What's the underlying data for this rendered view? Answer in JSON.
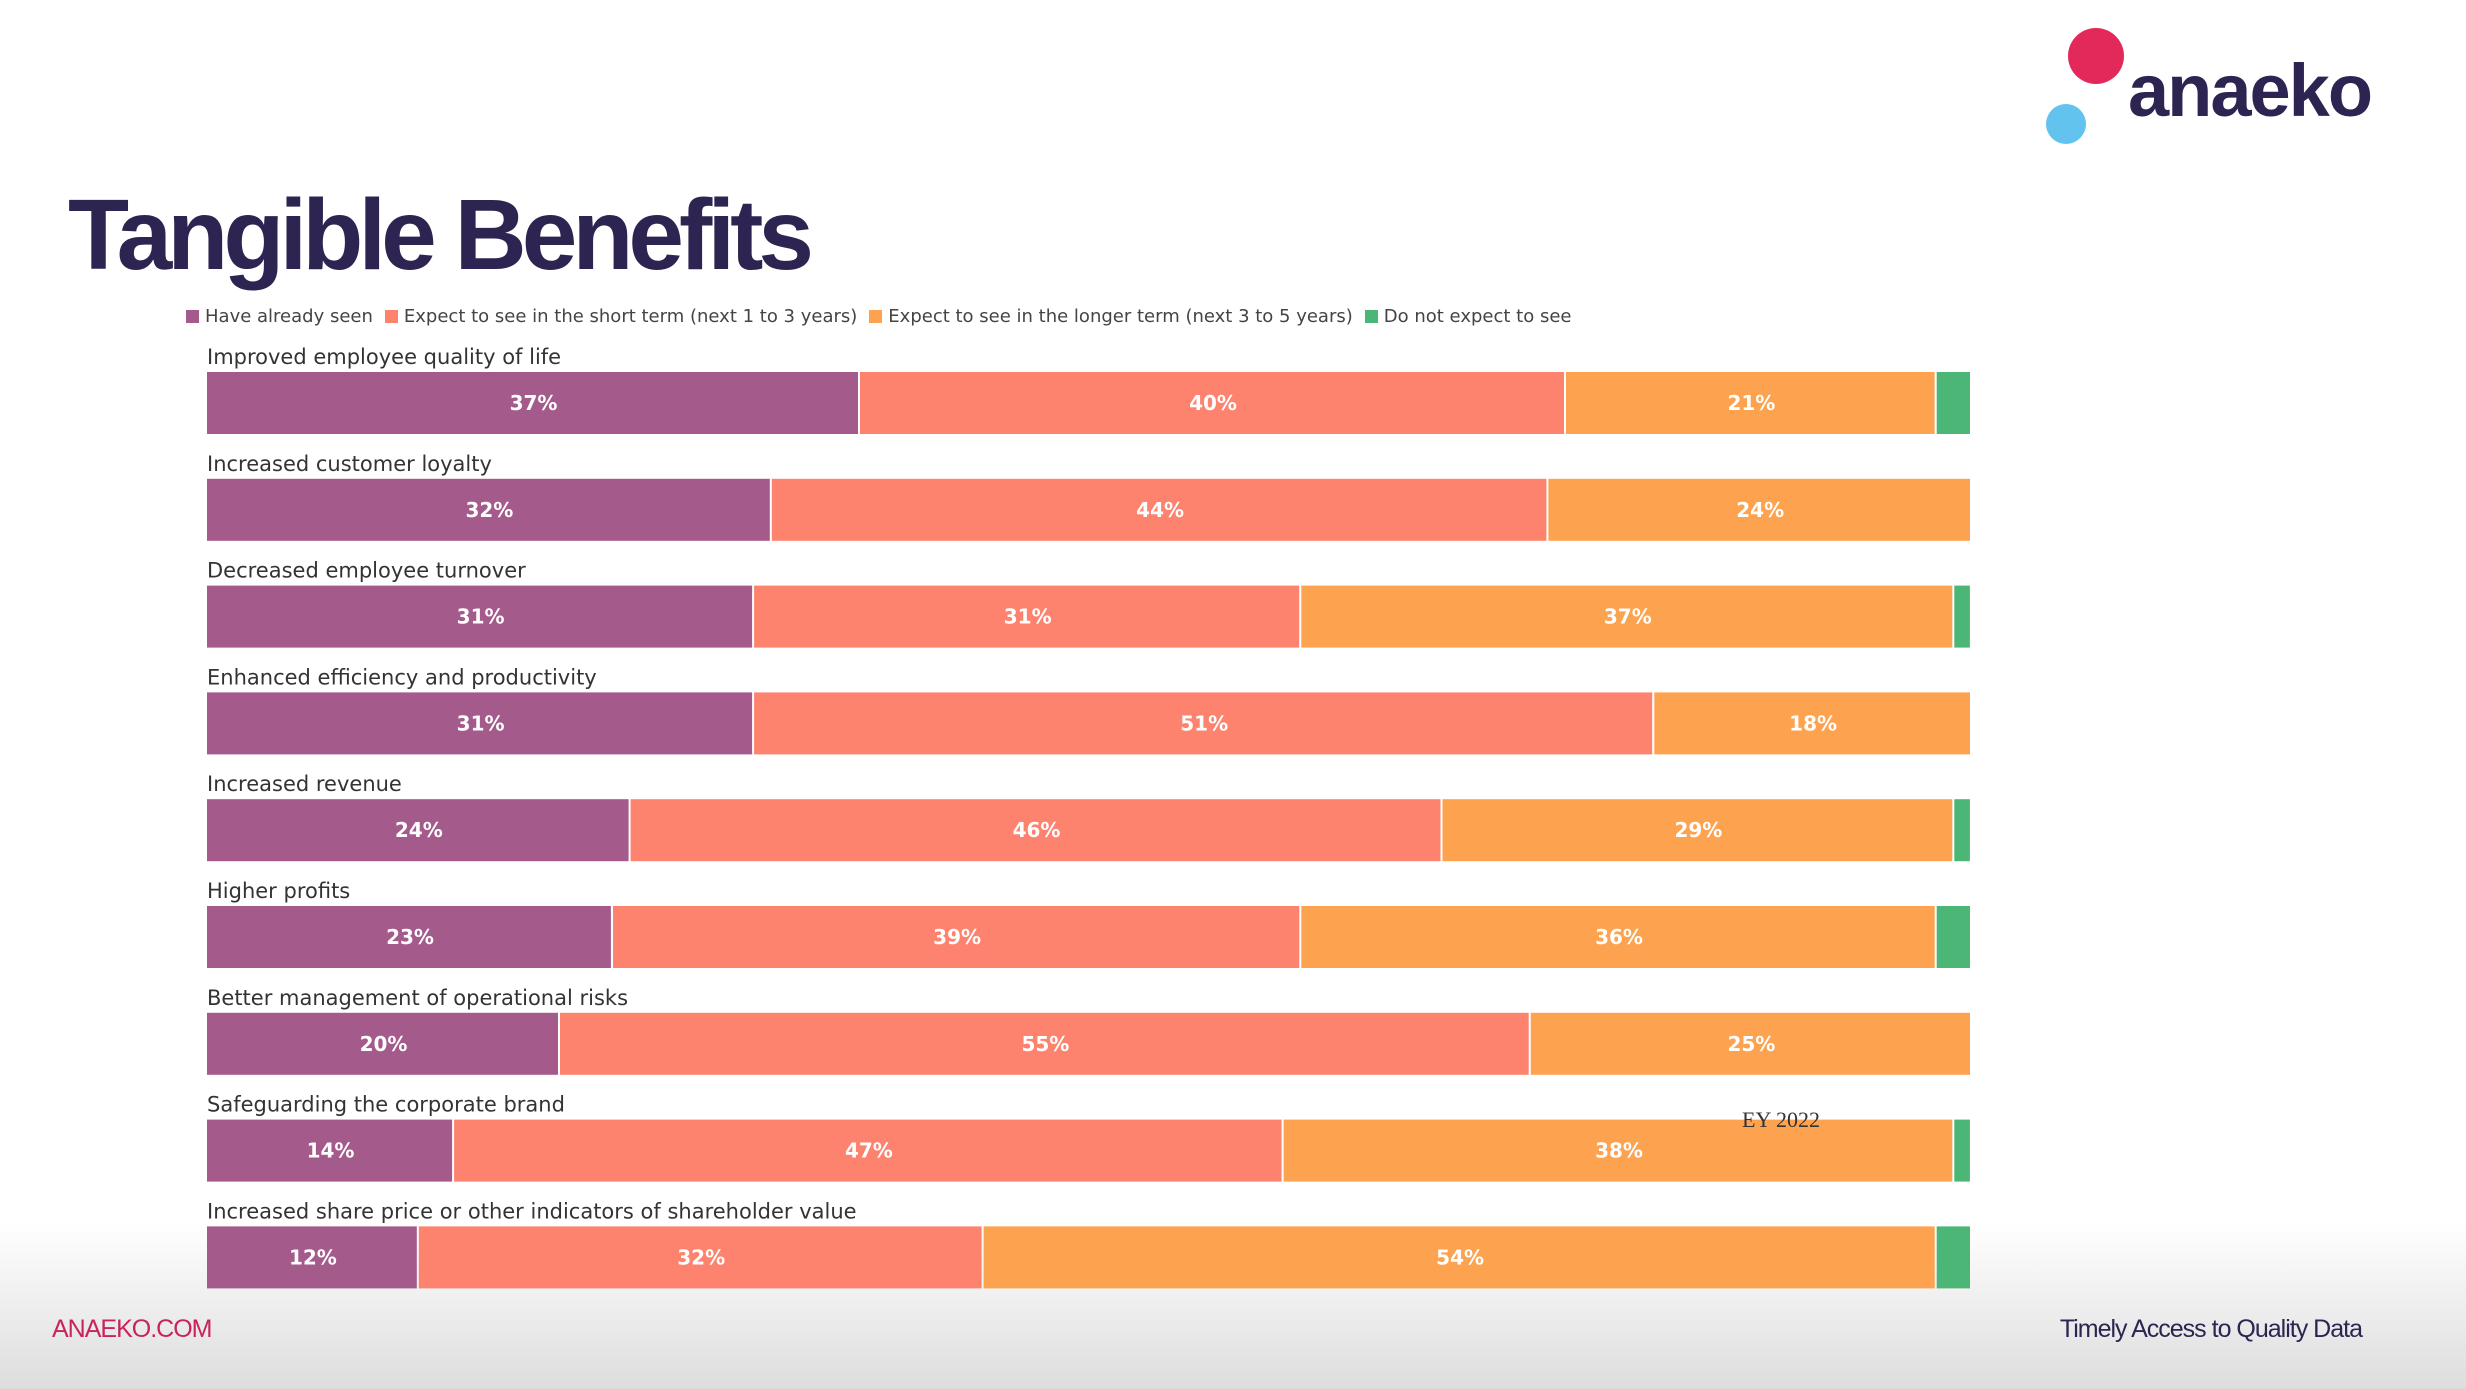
{
  "slide": {
    "title": "Tangible Benefits",
    "logo_text": "anaeko",
    "source_note": "EY 2022",
    "footer_left": "ANAEKO.COM",
    "footer_right": "Timely Access to Quality Data"
  },
  "colors": {
    "logo_dark": "#2d2451",
    "logo_pink": "#e3285a",
    "logo_blue": "#62c4ee"
  },
  "chart_data": {
    "type": "bar",
    "orientation": "horizontal",
    "stacked": true,
    "title": "Tangible Benefits",
    "legend_position": "top",
    "categories": [
      "Improved employee quality of life",
      "Increased customer loyalty",
      "Decreased employee turnover",
      "Enhanced efficiency and productivity",
      "Increased revenue",
      "Higher profits",
      "Better management of operational risks",
      "Safeguarding the corporate brand",
      "Increased share price or other indicators of shareholder value"
    ],
    "series": [
      {
        "name": "Have already seen",
        "color": "#a45a8b",
        "values": [
          37,
          32,
          31,
          31,
          24,
          23,
          20,
          14,
          12
        ],
        "labels": [
          "37%",
          "32%",
          "31%",
          "31%",
          "24%",
          "23%",
          "20%",
          "14%",
          "12%"
        ]
      },
      {
        "name": "Expect to see in the short term (next 1 to 3 years)",
        "color": "#fd836e",
        "values": [
          40,
          44,
          31,
          51,
          46,
          39,
          55,
          47,
          32
        ],
        "labels": [
          "40%",
          "44%",
          "31%",
          "51%",
          "46%",
          "39%",
          "55%",
          "47%",
          "32%"
        ]
      },
      {
        "name": "Expect to see in the longer term (next 3 to 5 years)",
        "color": "#fda24f",
        "values": [
          21,
          24,
          37,
          18,
          29,
          36,
          25,
          38,
          54
        ],
        "labels": [
          "21%",
          "24%",
          "37%",
          "18%",
          "29%",
          "36%",
          "25%",
          "38%",
          "54%"
        ]
      },
      {
        "name": "Do not expect to see",
        "color": "#4cb677",
        "values": [
          2,
          0,
          1,
          0,
          1,
          2,
          0,
          1,
          2
        ],
        "labels": [
          "",
          "",
          "",
          "",
          "",
          "",
          "",
          "",
          ""
        ]
      }
    ],
    "xlim": [
      0,
      100
    ],
    "xlabel": "",
    "ylabel": "",
    "grid": false
  }
}
